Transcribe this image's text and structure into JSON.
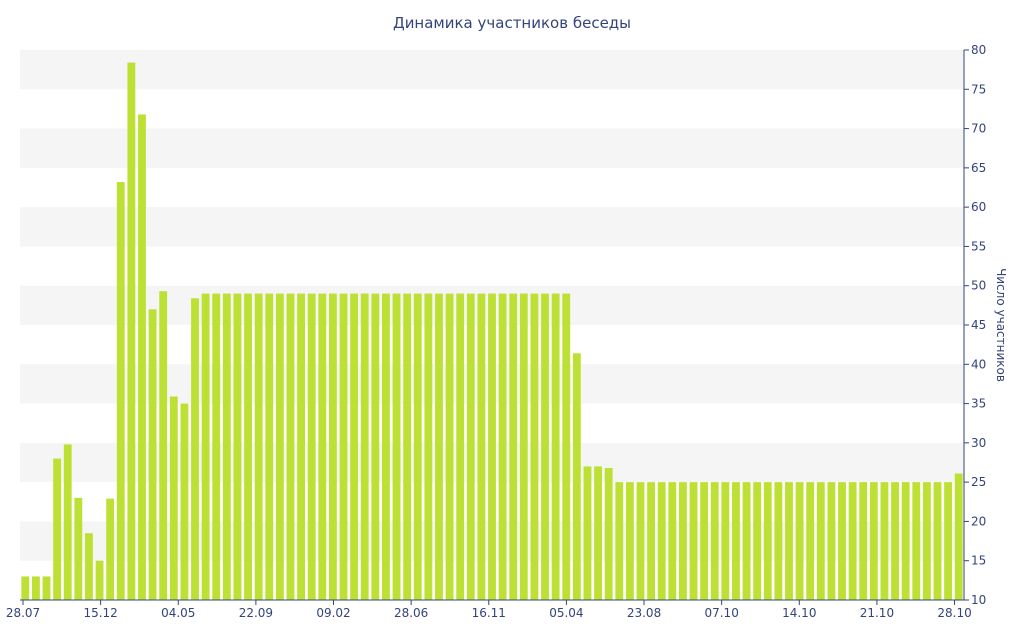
{
  "chart_data": {
    "type": "bar",
    "title": "Динамика участников беседы",
    "xlabel": "",
    "ylabel": "Число участников",
    "ylim": [
      10,
      80
    ],
    "y_ticks": [
      10,
      15,
      20,
      25,
      30,
      35,
      40,
      45,
      50,
      55,
      60,
      65,
      70,
      75,
      80
    ],
    "y_axis_side": "right",
    "grid": "alternating horizontal bands",
    "x_tick_labels": [
      "28.07",
      "15.12",
      "04.05",
      "22.09",
      "09.02",
      "28.06",
      "16.11",
      "05.04",
      "23.08",
      "07.10",
      "14.10",
      "21.10",
      "28.10"
    ],
    "values": [
      13,
      13,
      13,
      28,
      29.8,
      23,
      18.5,
      15,
      22.9,
      63.2,
      78.4,
      71.8,
      47,
      49.3,
      35.9,
      35,
      48.4,
      49,
      49,
      49,
      49,
      49,
      49,
      49,
      49,
      49,
      49,
      49,
      49,
      49,
      49,
      49,
      49,
      49,
      49,
      49,
      49,
      49,
      49,
      49,
      49,
      49,
      49,
      49,
      49,
      49,
      49,
      49,
      49,
      49,
      49,
      49,
      41.4,
      27,
      27,
      26.8,
      25,
      25,
      25,
      25,
      25,
      25,
      25,
      25,
      25,
      25,
      25,
      25,
      25,
      25,
      25,
      25,
      25,
      25,
      25,
      25,
      25,
      25,
      25,
      25,
      25,
      25,
      25,
      25,
      25,
      25,
      25,
      25,
      26.1
    ],
    "colors": {
      "bar": "#bde034",
      "band": "#f5f5f5",
      "axis": "#33447a",
      "text": "#33447a"
    }
  }
}
